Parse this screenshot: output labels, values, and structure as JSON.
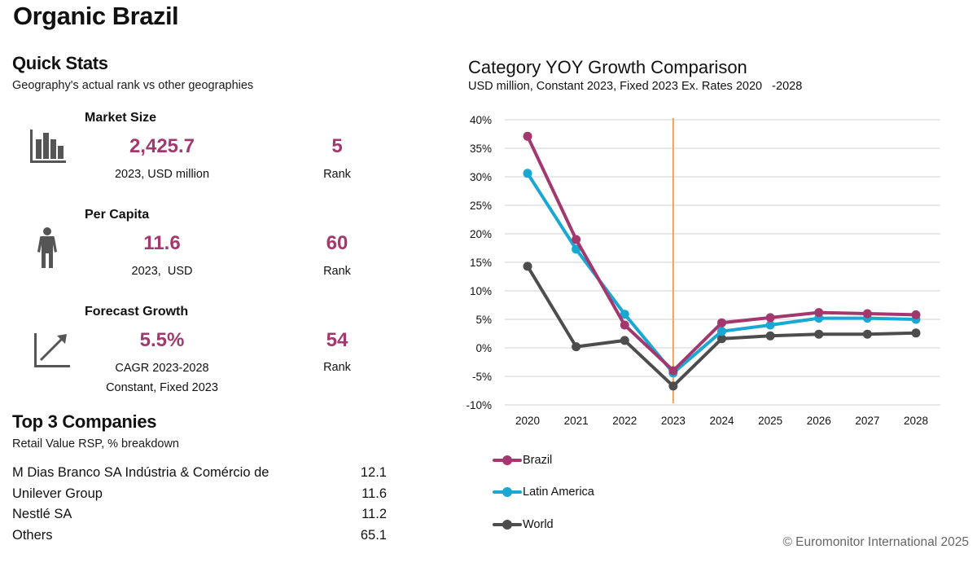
{
  "page": {
    "title": "Organic Brazil"
  },
  "quick_stats": {
    "title": "Quick Stats",
    "subtitle": "Geography's actual rank vs other geographies",
    "items": [
      {
        "label": "Market Size",
        "icon": "bar-chart-icon",
        "value": "2,425.7",
        "caption": "2023, USD million",
        "caption2": "",
        "rank": "5",
        "rank_label": "Rank"
      },
      {
        "label": "Per Capita",
        "icon": "person-icon",
        "value": "11.6",
        "caption": "2023,  USD",
        "caption2": "",
        "rank": "60",
        "rank_label": "Rank"
      },
      {
        "label": "Forecast Growth",
        "icon": "growth-arrow-icon",
        "value": "5.5%",
        "caption": "CAGR 2023-2028",
        "caption2": "Constant, Fixed 2023",
        "rank": "54",
        "rank_label": "Rank"
      }
    ]
  },
  "top_companies": {
    "title": "Top 3 Companies",
    "subtitle": "Retail Value RSP, % breakdown",
    "rows": [
      {
        "name": "M Dias Branco SA Indústria & Comércio de",
        "value": "12.1"
      },
      {
        "name": "Unilever Group",
        "value": "11.6"
      },
      {
        "name": "Nestlé SA",
        "value": "11.2"
      },
      {
        "name": "Others",
        "value": "65.1"
      }
    ]
  },
  "colors": {
    "accent": "#a3386e",
    "brazil": "#a3386e",
    "latin_america": "#1aa7d1",
    "world": "#4d4d4d",
    "marker_line": "#f0913a",
    "grid": "#d9d9d9"
  },
  "chart_data": {
    "type": "line",
    "title": "Category YOY Growth Comparison",
    "subtitle": "USD million, Constant 2023, Fixed 2023 Ex. Rates 2020   -2028",
    "xlabel": "",
    "ylabel": "",
    "x": [
      "2020",
      "2021",
      "2022",
      "2023",
      "2024",
      "2025",
      "2026",
      "2027",
      "2028"
    ],
    "ylim": [
      -10,
      40
    ],
    "yticks": [
      40,
      35,
      30,
      25,
      20,
      15,
      10,
      5,
      0,
      -5,
      -10
    ],
    "ytick_labels": [
      "40%",
      "35%",
      "30%",
      "25%",
      "20%",
      "15%",
      "10%",
      "5%",
      "0%",
      "-5%",
      "-10%"
    ],
    "grid": true,
    "vertical_marker": "2023",
    "legend_position": "bottom-left",
    "series": [
      {
        "name": "Brazil",
        "color": "#a3386e",
        "values": [
          37.1,
          19.0,
          4.0,
          -4.0,
          4.4,
          5.3,
          6.2,
          6.0,
          5.8
        ]
      },
      {
        "name": "Latin America",
        "color": "#1aa7d1",
        "values": [
          30.6,
          17.3,
          5.9,
          -4.4,
          2.9,
          4.0,
          5.2,
          5.2,
          5.0
        ]
      },
      {
        "name": "World",
        "color": "#4d4d4d",
        "values": [
          14.3,
          0.2,
          1.3,
          -6.7,
          1.6,
          2.1,
          2.4,
          2.4,
          2.6
        ]
      }
    ]
  },
  "footer": {
    "copyright": "© Euromonitor International 2025"
  }
}
